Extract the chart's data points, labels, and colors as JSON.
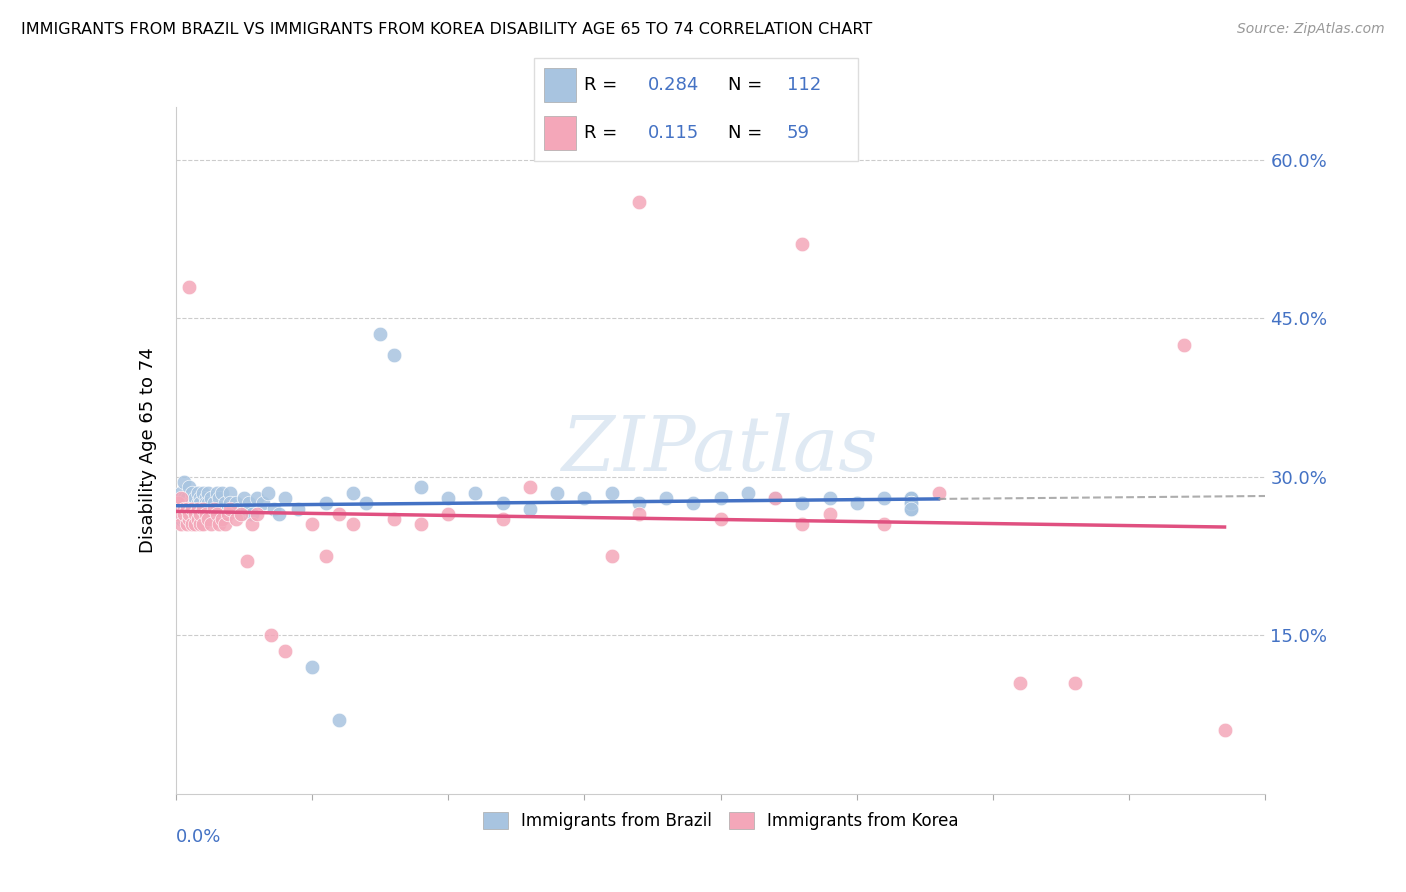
{
  "title": "IMMIGRANTS FROM BRAZIL VS IMMIGRANTS FROM KOREA DISABILITY AGE 65 TO 74 CORRELATION CHART",
  "source": "Source: ZipAtlas.com",
  "ylabel": "Disability Age 65 to 74",
  "ytick_values": [
    0.15,
    0.3,
    0.45,
    0.6
  ],
  "xlim": [
    0.0,
    0.4
  ],
  "ylim": [
    0.0,
    0.65
  ],
  "brazil_color": "#a8c4e0",
  "korea_color": "#f4a7b9",
  "brazil_line_color": "#4472c4",
  "korea_line_color": "#e05080",
  "watermark": "ZIPatlas",
  "brazil_N": 112,
  "korea_N": 59,
  "brazil_R": 0.284,
  "korea_R": 0.115,
  "brazil_x": [
    0.001,
    0.001,
    0.001,
    0.002,
    0.002,
    0.002,
    0.002,
    0.003,
    0.003,
    0.003,
    0.003,
    0.003,
    0.004,
    0.004,
    0.004,
    0.004,
    0.005,
    0.005,
    0.005,
    0.005,
    0.005,
    0.006,
    0.006,
    0.006,
    0.006,
    0.007,
    0.007,
    0.007,
    0.007,
    0.008,
    0.008,
    0.008,
    0.008,
    0.009,
    0.009,
    0.009,
    0.01,
    0.01,
    0.01,
    0.011,
    0.011,
    0.011,
    0.012,
    0.012,
    0.012,
    0.013,
    0.013,
    0.013,
    0.014,
    0.014,
    0.015,
    0.015,
    0.016,
    0.016,
    0.017,
    0.017,
    0.018,
    0.018,
    0.019,
    0.02,
    0.02,
    0.021,
    0.022,
    0.023,
    0.024,
    0.025,
    0.026,
    0.027,
    0.028,
    0.03,
    0.032,
    0.034,
    0.036,
    0.038,
    0.04,
    0.045,
    0.05,
    0.055,
    0.06,
    0.065,
    0.07,
    0.075,
    0.08,
    0.09,
    0.1,
    0.11,
    0.12,
    0.13,
    0.14,
    0.15,
    0.16,
    0.17,
    0.18,
    0.19,
    0.2,
    0.21,
    0.22,
    0.23,
    0.24,
    0.25,
    0.26,
    0.27,
    0.27,
    0.27,
    0.27,
    0.27,
    0.27,
    0.27,
    0.27,
    0.27,
    0.27,
    0.27
  ],
  "brazil_y": [
    0.27,
    0.28,
    0.265,
    0.275,
    0.26,
    0.285,
    0.27,
    0.275,
    0.28,
    0.265,
    0.295,
    0.26,
    0.275,
    0.265,
    0.28,
    0.27,
    0.275,
    0.265,
    0.29,
    0.27,
    0.26,
    0.28,
    0.275,
    0.265,
    0.285,
    0.275,
    0.265,
    0.28,
    0.27,
    0.285,
    0.275,
    0.265,
    0.26,
    0.28,
    0.27,
    0.275,
    0.285,
    0.27,
    0.265,
    0.28,
    0.275,
    0.265,
    0.285,
    0.27,
    0.275,
    0.28,
    0.265,
    0.27,
    0.275,
    0.265,
    0.285,
    0.27,
    0.28,
    0.265,
    0.285,
    0.27,
    0.275,
    0.265,
    0.27,
    0.285,
    0.275,
    0.27,
    0.275,
    0.27,
    0.265,
    0.28,
    0.27,
    0.275,
    0.265,
    0.28,
    0.275,
    0.285,
    0.27,
    0.265,
    0.28,
    0.27,
    0.12,
    0.275,
    0.07,
    0.285,
    0.275,
    0.435,
    0.415,
    0.29,
    0.28,
    0.285,
    0.275,
    0.27,
    0.285,
    0.28,
    0.285,
    0.275,
    0.28,
    0.275,
    0.28,
    0.285,
    0.28,
    0.275,
    0.28,
    0.275,
    0.28,
    0.275,
    0.28,
    0.27,
    0.275,
    0.28,
    0.27,
    0.275,
    0.28,
    0.275,
    0.275,
    0.27
  ],
  "korea_x": [
    0.001,
    0.001,
    0.002,
    0.002,
    0.003,
    0.003,
    0.004,
    0.004,
    0.005,
    0.005,
    0.005,
    0.006,
    0.006,
    0.007,
    0.007,
    0.008,
    0.008,
    0.009,
    0.009,
    0.01,
    0.01,
    0.011,
    0.012,
    0.013,
    0.014,
    0.015,
    0.016,
    0.017,
    0.018,
    0.019,
    0.02,
    0.022,
    0.024,
    0.026,
    0.028,
    0.03,
    0.035,
    0.04,
    0.05,
    0.055,
    0.06,
    0.065,
    0.08,
    0.09,
    0.1,
    0.12,
    0.13,
    0.16,
    0.17,
    0.2,
    0.22,
    0.23,
    0.24,
    0.26,
    0.28,
    0.31,
    0.33,
    0.37,
    0.385
  ],
  "korea_y": [
    0.275,
    0.265,
    0.255,
    0.28,
    0.27,
    0.265,
    0.255,
    0.27,
    0.26,
    0.265,
    0.48,
    0.27,
    0.255,
    0.265,
    0.255,
    0.27,
    0.26,
    0.255,
    0.265,
    0.255,
    0.27,
    0.265,
    0.26,
    0.255,
    0.27,
    0.265,
    0.255,
    0.26,
    0.255,
    0.265,
    0.27,
    0.26,
    0.265,
    0.22,
    0.255,
    0.265,
    0.15,
    0.135,
    0.255,
    0.225,
    0.265,
    0.255,
    0.26,
    0.255,
    0.265,
    0.26,
    0.29,
    0.225,
    0.265,
    0.26,
    0.28,
    0.255,
    0.265,
    0.255,
    0.285,
    0.105,
    0.105,
    0.425,
    0.06
  ]
}
